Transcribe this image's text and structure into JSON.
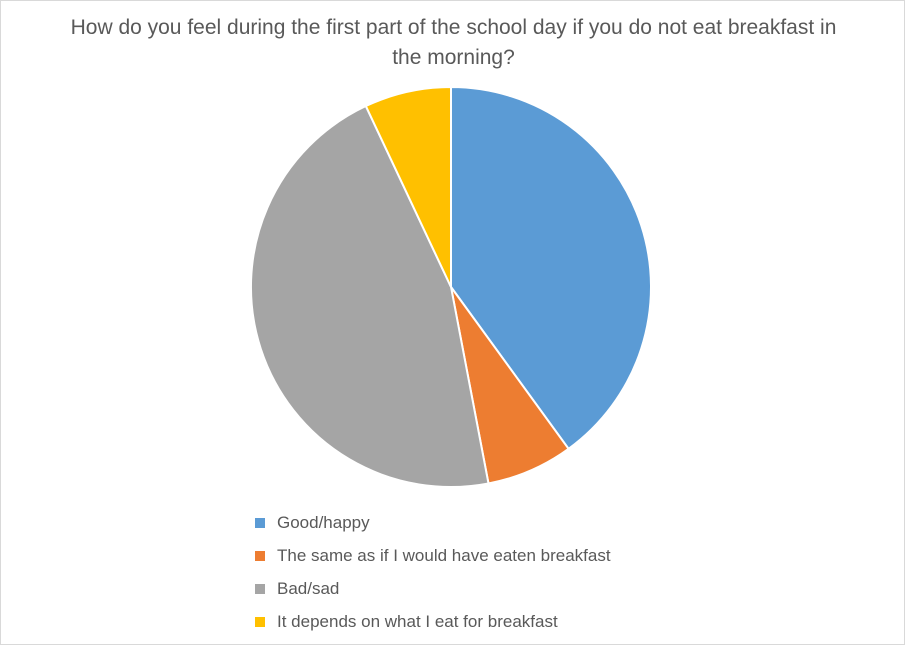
{
  "chart_data": {
    "type": "pie",
    "title": "How do you feel during the first part of the school day if you do not eat breakfast in the morning?",
    "categories": [
      "Good/happy",
      "The same as if I would have eaten breakfast",
      "Bad/sad",
      "It depends on what I eat for breakfast"
    ],
    "values": [
      40,
      7,
      46,
      7
    ],
    "colors": [
      "#5b9bd5",
      "#ed7d31",
      "#a5a5a5",
      "#ffc000"
    ],
    "legend_position": "bottom",
    "start_angle": "12 o'clock",
    "direction": "clockwise"
  }
}
